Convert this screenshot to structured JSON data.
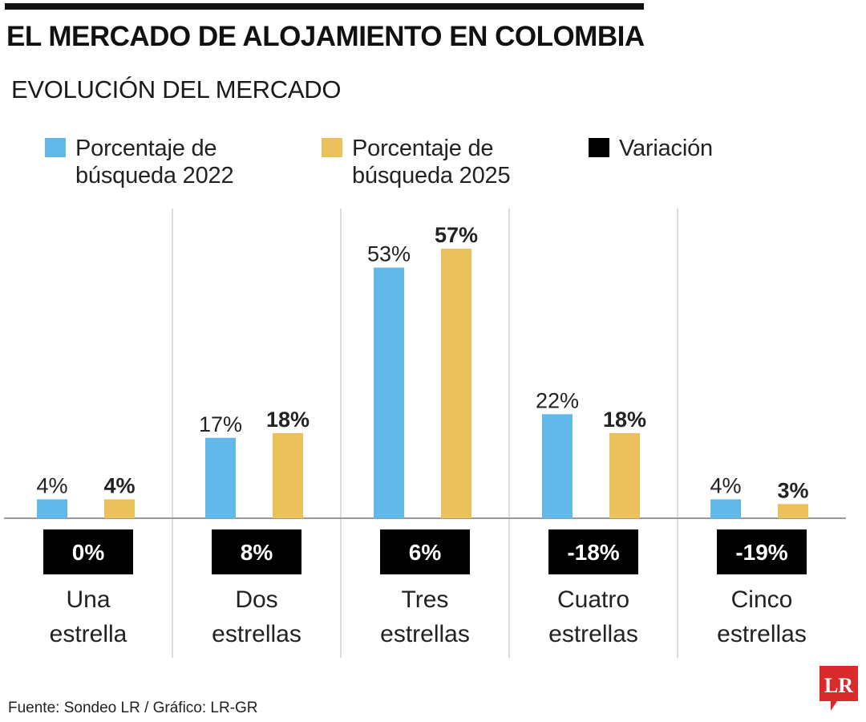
{
  "header": {
    "title": "EL MERCADO DE ALOJAMIENTO EN COLOMBIA",
    "subtitle": "EVOLUCIÓN DEL MERCADO"
  },
  "legend": [
    {
      "label": "Porcentaje de\nbúsqueda 2022",
      "color": "#62b8e8"
    },
    {
      "label": "Porcentaje de\nbúsqueda 2025",
      "color": "#ebc15b"
    },
    {
      "label": "Variación",
      "color": "#000000"
    }
  ],
  "chart_data": {
    "type": "bar",
    "categories": [
      "Una estrella",
      "Dos estrellas",
      "Tres estrellas",
      "Cuatro estrellas",
      "Cinco estrellas"
    ],
    "category_lines": [
      [
        "Una",
        "estrella"
      ],
      [
        "Dos",
        "estrellas"
      ],
      [
        "Tres",
        "estrellas"
      ],
      [
        "Cuatro",
        "estrellas"
      ],
      [
        "Cinco",
        "estrellas"
      ]
    ],
    "series": [
      {
        "name": "Porcentaje de búsqueda 2022",
        "values": [
          4,
          17,
          53,
          22,
          4
        ],
        "labels": [
          "4%",
          "17%",
          "53%",
          "22%",
          "4%"
        ],
        "color": "#62b8e8"
      },
      {
        "name": "Porcentaje de búsqueda 2025",
        "values": [
          4,
          18,
          57,
          18,
          3
        ],
        "labels": [
          "4%",
          "18%",
          "57%",
          "18%",
          "3%"
        ],
        "color": "#ebc15b"
      }
    ],
    "variation": {
      "name": "Variación",
      "labels": [
        "0%",
        "8%",
        "6%",
        "-18%",
        "-19%"
      ],
      "color": "#000000"
    },
    "ylim": [
      0,
      60
    ],
    "grid": false,
    "legend_position": "top"
  },
  "footer": {
    "source": "Fuente: Sondeo LR / Gráfico: LR-GR",
    "logo_text": "LR",
    "logo_color": "#d92b2b"
  }
}
